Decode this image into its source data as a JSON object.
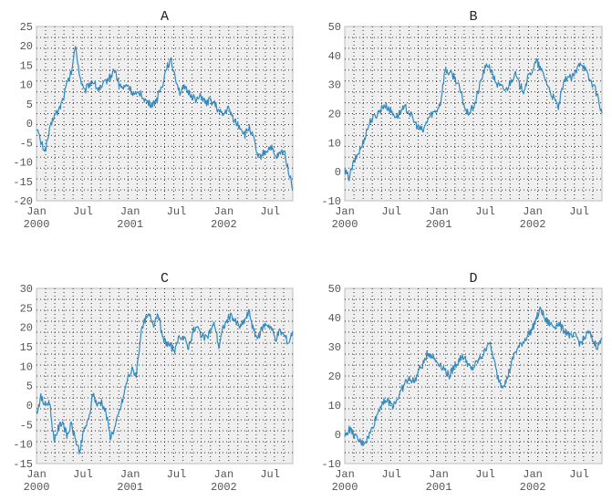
{
  "chart_data": [
    {
      "title": "A",
      "type": "line",
      "x_tick_labels": [
        [
          "Jan",
          "2000"
        ],
        [
          "Jul",
          ""
        ],
        [
          "Jan",
          "2001"
        ],
        [
          "Jul",
          ""
        ],
        [
          "Jan",
          "2002"
        ],
        [
          "Jul",
          ""
        ]
      ],
      "ylim": [
        -20,
        25
      ],
      "y_ticks": [
        25,
        20,
        15,
        10,
        5,
        0,
        -5,
        -10,
        -15,
        -20
      ],
      "grid": true,
      "color": "#348abd",
      "series": [
        {
          "values": [
            -1,
            -5,
            -7,
            -2,
            2,
            3,
            6,
            10,
            13,
            20,
            12,
            8,
            10,
            11,
            9,
            9,
            11,
            12,
            14,
            10,
            9,
            10,
            8,
            7,
            8,
            6,
            5,
            5,
            7,
            10,
            15,
            16,
            12,
            8,
            9,
            8,
            7,
            6,
            7,
            5,
            6,
            5,
            3,
            2,
            4,
            2,
            0,
            -1,
            -3,
            -1,
            -4,
            -9,
            -8,
            -7,
            -6,
            -9,
            -8,
            -7,
            -12,
            -17
          ]
        }
      ]
    },
    {
      "title": "B",
      "type": "line",
      "x_tick_labels": [
        [
          "Jan",
          "2000"
        ],
        [
          "Jul",
          ""
        ],
        [
          "Jan",
          "2001"
        ],
        [
          "Jul",
          ""
        ],
        [
          "Jan",
          "2002"
        ],
        [
          "Jul",
          ""
        ]
      ],
      "ylim": [
        -10,
        50
      ],
      "y_ticks": [
        50,
        40,
        30,
        20,
        10,
        0,
        -10
      ],
      "grid": true,
      "color": "#348abd",
      "series": [
        {
          "values": [
            0,
            -2,
            3,
            6,
            9,
            14,
            18,
            19,
            21,
            23,
            22,
            20,
            19,
            21,
            22,
            20,
            17,
            15,
            14,
            18,
            20,
            21,
            24,
            35,
            34,
            33,
            30,
            25,
            20,
            21,
            24,
            30,
            35,
            37,
            33,
            30,
            29,
            28,
            31,
            34,
            30,
            28,
            32,
            35,
            38,
            35,
            32,
            28,
            25,
            22,
            29,
            33,
            32,
            34,
            38,
            36,
            32,
            30,
            26,
            20
          ]
        }
      ]
    },
    {
      "title": "C",
      "type": "line",
      "x_tick_labels": [
        [
          "Jan",
          "2000"
        ],
        [
          "Jul",
          ""
        ],
        [
          "Jan",
          "2001"
        ],
        [
          "Jul",
          ""
        ],
        [
          "Jan",
          "2002"
        ],
        [
          "Jul",
          ""
        ]
      ],
      "ylim": [
        -15,
        30
      ],
      "y_ticks": [
        30,
        25,
        20,
        15,
        10,
        5,
        0,
        -5,
        -10,
        -15
      ],
      "grid": true,
      "color": "#348abd",
      "series": [
        {
          "values": [
            -2,
            2,
            0,
            1,
            -9,
            -6,
            -4,
            -8,
            -5,
            -9,
            -12,
            -6,
            -4,
            3,
            0,
            1,
            -2,
            -8,
            -6,
            -2,
            2,
            7,
            9,
            8,
            18,
            22,
            23,
            21,
            24,
            17,
            16,
            15,
            14,
            18,
            17,
            15,
            19,
            20,
            18,
            17,
            19,
            21,
            15,
            20,
            22,
            23,
            21,
            20,
            22,
            24,
            19,
            17,
            20,
            21,
            20,
            17,
            19,
            18,
            16,
            19
          ]
        }
      ]
    },
    {
      "title": "D",
      "type": "line",
      "x_tick_labels": [
        [
          "Jan",
          "2000"
        ],
        [
          "Jul",
          ""
        ],
        [
          "Jan",
          "2001"
        ],
        [
          "Jul",
          ""
        ],
        [
          "Jan",
          "2002"
        ],
        [
          "Jul",
          ""
        ]
      ],
      "ylim": [
        -10,
        50
      ],
      "y_ticks": [
        50,
        40,
        30,
        20,
        10,
        0,
        -10
      ],
      "grid": true,
      "color": "#348abd",
      "series": [
        {
          "values": [
            -1,
            2,
            0,
            -2,
            -3,
            -2,
            1,
            5,
            9,
            12,
            11,
            10,
            12,
            15,
            18,
            19,
            18,
            22,
            24,
            28,
            27,
            25,
            24,
            22,
            20,
            23,
            25,
            27,
            25,
            22,
            24,
            26,
            28,
            32,
            27,
            20,
            17,
            18,
            23,
            28,
            30,
            32,
            34,
            36,
            40,
            43,
            39,
            38,
            37,
            38,
            36,
            35,
            33,
            34,
            31,
            33,
            35,
            32,
            30,
            33
          ]
        }
      ]
    }
  ]
}
